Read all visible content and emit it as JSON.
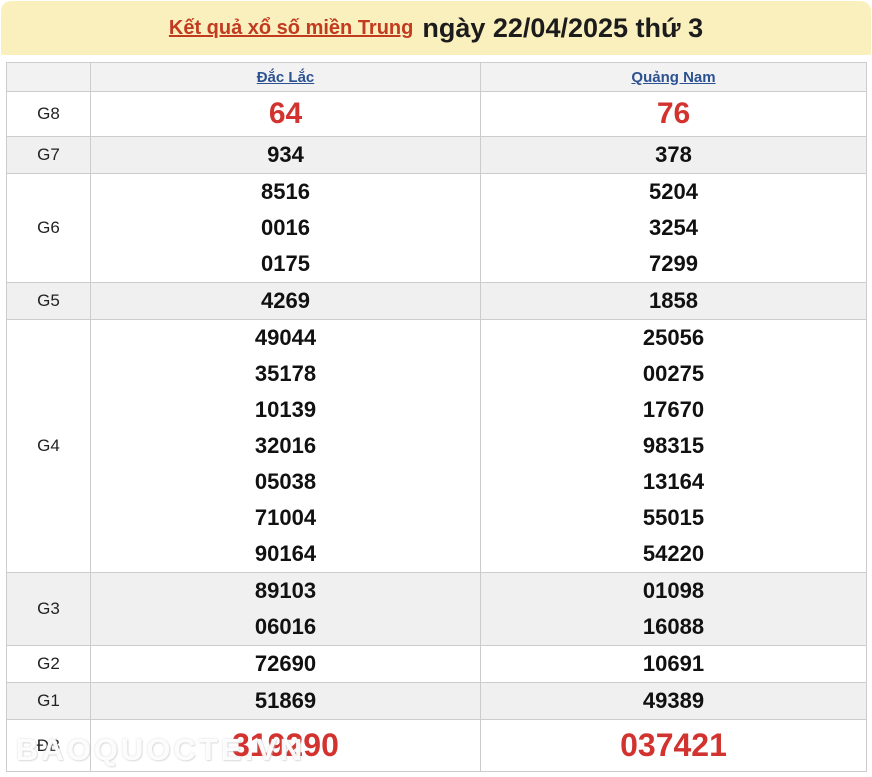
{
  "header": {
    "title_link": "Kết quả xổ số miền Trung",
    "title_date": "ngày 22/04/2025 thứ 3"
  },
  "table": {
    "columns": [
      "Đắc Lắc",
      "Quảng Nam"
    ],
    "rows": [
      {
        "label": "G8",
        "dac_lac": [
          "64"
        ],
        "quang_nam": [
          "76"
        ],
        "highlight": true
      },
      {
        "label": "G7",
        "dac_lac": [
          "934"
        ],
        "quang_nam": [
          "378"
        ]
      },
      {
        "label": "G6",
        "dac_lac": [
          "8516",
          "0016",
          "0175"
        ],
        "quang_nam": [
          "5204",
          "3254",
          "7299"
        ]
      },
      {
        "label": "G5",
        "dac_lac": [
          "4269"
        ],
        "quang_nam": [
          "1858"
        ]
      },
      {
        "label": "G4",
        "dac_lac": [
          "49044",
          "35178",
          "10139",
          "32016",
          "05038",
          "71004",
          "90164"
        ],
        "quang_nam": [
          "25056",
          "00275",
          "17670",
          "98315",
          "13164",
          "55015",
          "54220"
        ]
      },
      {
        "label": "G3",
        "dac_lac": [
          "89103",
          "06016"
        ],
        "quang_nam": [
          "01098",
          "16088"
        ]
      },
      {
        "label": "G2",
        "dac_lac": [
          "72690"
        ],
        "quang_nam": [
          "10691"
        ]
      },
      {
        "label": "G1",
        "dac_lac": [
          "51869"
        ],
        "quang_nam": [
          "49389"
        ]
      },
      {
        "label": "ĐB",
        "dac_lac": [
          "319290"
        ],
        "quang_nam": [
          "037421"
        ],
        "highlight": true
      }
    ]
  },
  "watermark": "BAOQUOCTE.VN",
  "colors": {
    "banner_bg": "#faf0bd",
    "title_link_red": "#c23a20",
    "title_text": "#1c1c1c",
    "column_link_blue": "#2d5291",
    "highlight_red": "#d2332f",
    "number_black": "#111111",
    "row_alt_bg": "#f0f0f0",
    "border": "#cccccc"
  }
}
